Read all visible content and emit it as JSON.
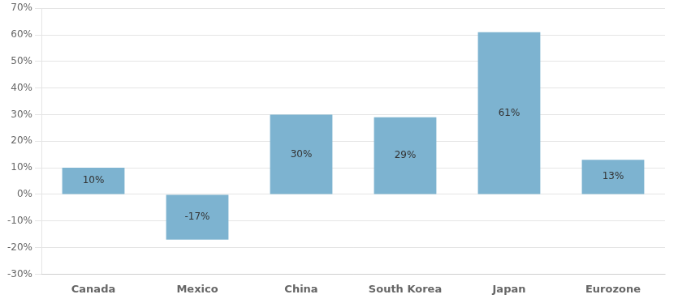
{
  "chart_data": {
    "type": "bar",
    "categories": [
      "Canada",
      "Mexico",
      "China",
      "South Korea",
      "Japan",
      "Eurozone"
    ],
    "values": [
      10,
      -17,
      30,
      29,
      61,
      13
    ],
    "value_labels": [
      "10%",
      "-17%",
      "30%",
      "29%",
      "61%",
      "13%"
    ],
    "data_labels": true,
    "color": "#7db3d0",
    "ylim": [
      -30,
      70
    ],
    "yticks": [
      {
        "value": -30,
        "label": "-30%"
      },
      {
        "value": -20,
        "label": "-20%"
      },
      {
        "value": -10,
        "label": "-10%"
      },
      {
        "value": 0,
        "label": "0%"
      },
      {
        "value": 10,
        "label": "10%"
      },
      {
        "value": 20,
        "label": "20%"
      },
      {
        "value": 30,
        "label": "30%"
      },
      {
        "value": 40,
        "label": "40%"
      },
      {
        "value": 50,
        "label": "50%"
      },
      {
        "value": 60,
        "label": "60%"
      },
      {
        "value": 70,
        "label": "70%"
      }
    ],
    "grid": true
  }
}
